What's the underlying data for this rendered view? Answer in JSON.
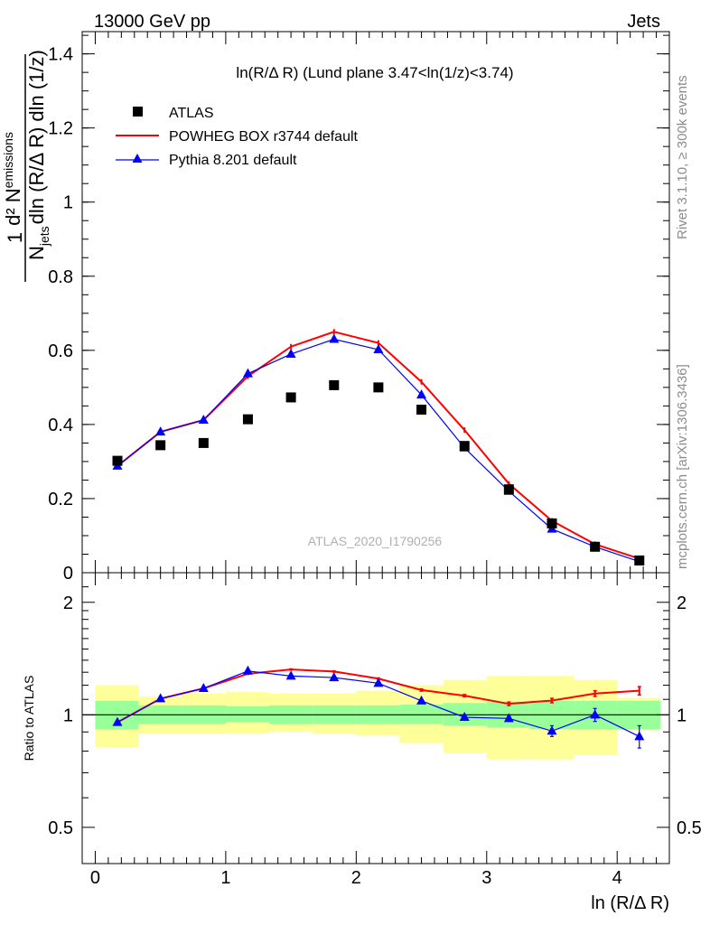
{
  "header": {
    "energy_label": "13000 GeV pp",
    "process_label": "Jets"
  },
  "side_labels": {
    "rivet": "Rivet 3.1.10, ≥ 300k events",
    "mcplots": "mcplots.cern.ch [arXiv:1306.3436]"
  },
  "watermark": "ATLAS_2020_I1790256",
  "chart_data": [
    {
      "type": "scatter",
      "title": "ln(R/Δ R) (Lund plane 3.47<ln(1/z)<3.74)",
      "xlabel": "ln (R/Δ R)",
      "ylabel": "1/N_jets dN_emissions/dln(R/ΔR) dln(1/z)",
      "ylabel_parts": {
        "numerator": "1",
        "denominator": "N",
        "denominator_sub": "jets",
        "fraction_top": "d² N",
        "fraction_top_sub": "emissions",
        "fraction_bottom": "dln (R/Δ R) dln (1/z)"
      },
      "xlim": [
        -0.1,
        4.4
      ],
      "ylim": [
        0,
        1.46
      ],
      "y_ticks": [
        0,
        0.2,
        0.4,
        0.6,
        0.8,
        1,
        1.2,
        1.4
      ],
      "y_tick_labels": [
        "0",
        "0.2",
        "0.4",
        "0.6",
        "0.8",
        "1",
        "1.2",
        "1.4"
      ],
      "legend_position": "top-left",
      "series": [
        {
          "name": "ATLAS",
          "color": "#000000",
          "marker": "square",
          "x": [
            0.17,
            0.5,
            0.83,
            1.17,
            1.5,
            1.83,
            2.17,
            2.5,
            2.83,
            3.17,
            3.5,
            3.83,
            4.17
          ],
          "y": [
            0.302,
            0.344,
            0.35,
            0.414,
            0.473,
            0.506,
            0.5,
            0.44,
            0.342,
            0.225,
            0.133,
            0.07,
            0.033
          ]
        },
        {
          "name": "POWHEG BOX r3744 default",
          "color": "#ff0000",
          "marker": "line",
          "x": [
            0.17,
            0.5,
            0.83,
            1.17,
            1.5,
            1.83,
            2.17,
            2.5,
            2.83,
            3.17,
            3.5,
            3.83,
            4.17
          ],
          "y": [
            0.288,
            0.38,
            0.412,
            0.53,
            0.61,
            0.65,
            0.62,
            0.515,
            0.385,
            0.24,
            0.14,
            0.077,
            0.038
          ]
        },
        {
          "name": "Pythia 8.201 default",
          "color": "#0000ff",
          "marker": "triangle",
          "x": [
            0.17,
            0.5,
            0.83,
            1.17,
            1.5,
            1.83,
            2.17,
            2.5,
            2.83,
            3.17,
            3.5,
            3.83,
            4.17
          ],
          "y": [
            0.288,
            0.38,
            0.412,
            0.537,
            0.59,
            0.63,
            0.602,
            0.48,
            0.337,
            0.22,
            0.118,
            0.07,
            0.03
          ]
        }
      ]
    },
    {
      "type": "scatter",
      "title": "",
      "xlabel": "ln (R/Δ R)",
      "ylabel": "Ratio to ATLAS",
      "xlim": [
        -0.1,
        4.4
      ],
      "ylim": [
        0.4,
        2.4
      ],
      "y_scale": "log",
      "y_ticks": [
        0.5,
        1,
        2
      ],
      "y_tick_labels": [
        "0.5",
        "1",
        "2"
      ],
      "x_ticks": [
        0,
        1,
        2,
        3,
        4
      ],
      "x_tick_labels": [
        "0",
        "1",
        "2",
        "3",
        "4"
      ],
      "bands": {
        "bin_edges": [
          0,
          0.333,
          0.667,
          1,
          1.333,
          1.667,
          2,
          2.333,
          2.667,
          3,
          3.333,
          3.667,
          4,
          4.333
        ],
        "inner_color": "#99ff99",
        "outer_color": "#ffff99",
        "inner_low": [
          0.915,
          0.945,
          0.945,
          0.955,
          0.945,
          0.945,
          0.945,
          0.945,
          0.935,
          0.925,
          0.915,
          0.915,
          0.915
        ],
        "inner_high": [
          1.09,
          1.06,
          1.06,
          1.055,
          1.06,
          1.06,
          1.06,
          1.065,
          1.075,
          1.085,
          1.09,
          1.09,
          1.09
        ],
        "outer_low": [
          0.82,
          0.89,
          0.89,
          0.89,
          0.9,
          0.89,
          0.88,
          0.84,
          0.79,
          0.76,
          0.76,
          0.78,
          0.91
        ],
        "outer_high": [
          1.2,
          1.12,
          1.14,
          1.15,
          1.14,
          1.14,
          1.16,
          1.2,
          1.24,
          1.27,
          1.27,
          1.24,
          1.11
        ]
      },
      "reference_line": 1,
      "series": [
        {
          "name": "POWHEG BOX r3744 default",
          "color": "#ff0000",
          "x": [
            0.17,
            0.5,
            0.83,
            1.17,
            1.5,
            1.83,
            2.17,
            2.5,
            2.83,
            3.17,
            3.5,
            3.83,
            4.17
          ],
          "y": [
            0.955,
            1.105,
            1.177,
            1.288,
            1.322,
            1.306,
            1.25,
            1.165,
            1.125,
            1.07,
            1.092,
            1.14,
            1.16
          ],
          "err": [
            0.005,
            0.005,
            0.005,
            0.005,
            0.005,
            0.005,
            0.005,
            0.008,
            0.008,
            0.012,
            0.015,
            0.02,
            0.03
          ]
        },
        {
          "name": "Pythia 8.201 default",
          "color": "#0000ff",
          "x": [
            0.17,
            0.5,
            0.83,
            1.17,
            1.5,
            1.83,
            2.17,
            2.5,
            2.83,
            3.17,
            3.5,
            3.83,
            4.17
          ],
          "y": [
            0.955,
            1.105,
            1.177,
            1.31,
            1.27,
            1.258,
            1.215,
            1.09,
            0.985,
            0.978,
            0.905,
            1.0,
            0.875
          ],
          "err": [
            0.005,
            0.005,
            0.005,
            0.005,
            0.005,
            0.005,
            0.005,
            0.008,
            0.01,
            0.015,
            0.03,
            0.04,
            0.06
          ]
        }
      ]
    }
  ]
}
